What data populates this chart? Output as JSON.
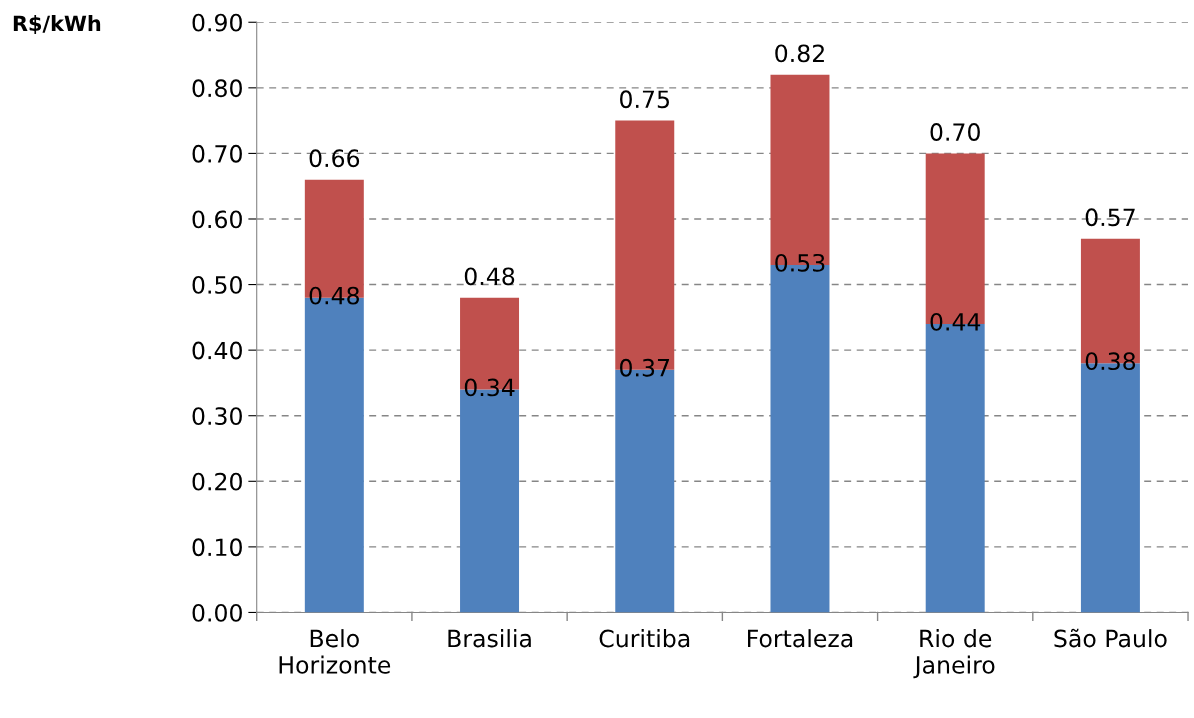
{
  "chart_data": {
    "type": "bar",
    "stacked": true,
    "ylabel": "R$/kWh",
    "categories": [
      "Belo\nHorizonte",
      "Brasilia",
      "Curitiba",
      "Fortaleza",
      "Rio de\nJaneiro",
      "São Paulo"
    ],
    "series": [
      {
        "color": "#4f81bd",
        "values": [
          0.48,
          0.34,
          0.37,
          0.53,
          0.44,
          0.38
        ],
        "value_labels": [
          "0.48",
          "0.34",
          "0.37",
          "0.53",
          "0.44",
          "0.38"
        ]
      },
      {
        "color": "#c0504d",
        "values": [
          0.18,
          0.14,
          0.38,
          0.29,
          0.26,
          0.19
        ]
      }
    ],
    "totals": [
      "0.66",
      "0.48",
      "0.75",
      "0.82",
      "0.70",
      "0.57"
    ],
    "ylim": [
      0,
      0.9
    ],
    "yticks": [
      {
        "value": 0,
        "label": "0.00"
      },
      {
        "value": 0.1,
        "label": "0.10"
      },
      {
        "value": 0.2,
        "label": "0.20"
      },
      {
        "value": 0.3,
        "label": "0.30"
      },
      {
        "value": 0.4,
        "label": "0.40"
      },
      {
        "value": 0.5,
        "label": "0.50"
      },
      {
        "value": 0.6,
        "label": "0.60"
      },
      {
        "value": 0.7,
        "label": "0.70"
      },
      {
        "value": 0.8,
        "label": "0.80"
      },
      {
        "value": 0.9,
        "label": "0.90"
      }
    ],
    "grid": "y",
    "legend": false
  }
}
